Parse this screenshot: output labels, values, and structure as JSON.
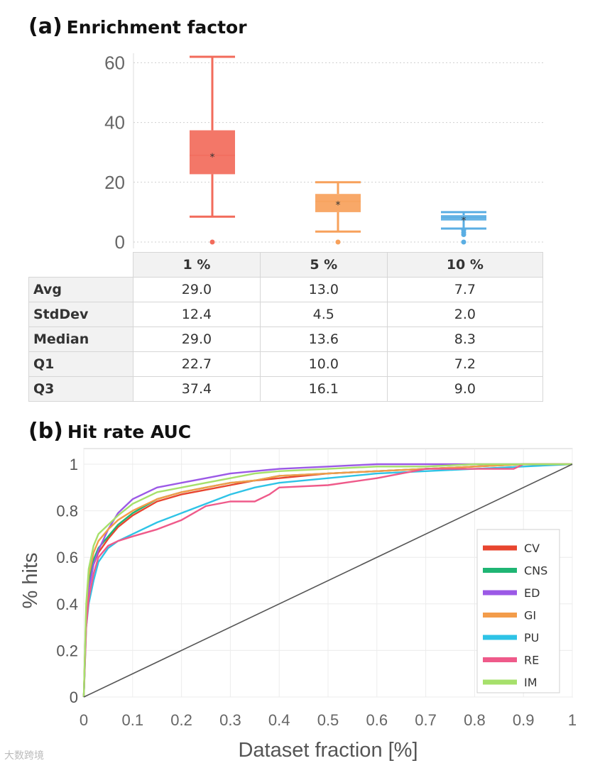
{
  "panel_a": {
    "letter": "(a)",
    "title": "Enrichment factor"
  },
  "panel_b": {
    "letter": "(b)",
    "title": "Hit rate AUC"
  },
  "stats_table": {
    "columns": [
      "1 %",
      "5 %",
      "10 %"
    ],
    "rows": [
      {
        "label": "Avg",
        "values": [
          "29.0",
          "13.0",
          "7.7"
        ]
      },
      {
        "label": "StdDev",
        "values": [
          "12.4",
          "4.5",
          "2.0"
        ]
      },
      {
        "label": "Median",
        "values": [
          "29.0",
          "13.6",
          "8.3"
        ]
      },
      {
        "label": "Q1",
        "values": [
          "22.7",
          "10.0",
          "7.2"
        ]
      },
      {
        "label": "Q3",
        "values": [
          "37.4",
          "16.1",
          "9.0"
        ]
      }
    ]
  },
  "watermark": "大数跨境",
  "chart_data": [
    {
      "type": "box",
      "title": "Enrichment factor",
      "categories": [
        "1 %",
        "5 %",
        "10 %"
      ],
      "ylim": [
        0,
        62
      ],
      "yticks": [
        "0",
        "20",
        "40",
        "60"
      ],
      "grid": true,
      "boxes": [
        {
          "name": "1 %",
          "min": 8.5,
          "q1": 22.7,
          "median": 29.0,
          "q3": 37.4,
          "max": 62,
          "mean": 29.0,
          "outliers": [
            0
          ],
          "color": "#f26b5b"
        },
        {
          "name": "5 %",
          "min": 3.5,
          "q1": 10.0,
          "median": 13.6,
          "q3": 16.1,
          "max": 20,
          "mean": 13.0,
          "outliers": [
            0
          ],
          "color": "#f7a15b"
        },
        {
          "name": "10 %",
          "min": 4.5,
          "q1": 7.2,
          "median": 8.3,
          "q3": 9.0,
          "max": 10,
          "mean": 7.7,
          "outliers": [
            4,
            3.2,
            2.5,
            0
          ],
          "color": "#5aaee3"
        }
      ]
    },
    {
      "type": "line",
      "title": "Hit rate AUC",
      "xlabel": "Dataset fraction [%]",
      "ylabel": "% hits",
      "xlim": [
        0,
        1
      ],
      "ylim": [
        0,
        1
      ],
      "xticks": [
        "0",
        "0.1",
        "0.2",
        "0.3",
        "0.4",
        "0.5",
        "0.6",
        "0.7",
        "0.8",
        "0.9",
        "1"
      ],
      "yticks": [
        "0",
        "0.2",
        "0.4",
        "0.6",
        "0.8",
        "1"
      ],
      "legend_position": "bottom-right",
      "series": [
        {
          "name": "CV",
          "color": "#e8452f",
          "x": [
            0,
            0.005,
            0.01,
            0.02,
            0.03,
            0.05,
            0.07,
            0.1,
            0.15,
            0.2,
            0.25,
            0.3,
            0.35,
            0.4,
            0.5,
            0.6,
            0.7,
            0.8,
            0.9,
            1.0
          ],
          "y": [
            0,
            0.35,
            0.48,
            0.57,
            0.62,
            0.68,
            0.73,
            0.78,
            0.84,
            0.87,
            0.89,
            0.91,
            0.93,
            0.94,
            0.96,
            0.97,
            0.98,
            0.99,
            1.0,
            1.0
          ]
        },
        {
          "name": "CNS",
          "color": "#1fb574",
          "x": [
            0,
            0.005,
            0.01,
            0.02,
            0.03,
            0.05,
            0.07,
            0.1,
            0.15,
            0.2,
            0.25,
            0.3,
            0.35,
            0.4,
            0.5,
            0.6,
            0.7,
            0.8,
            0.9,
            1.0
          ],
          "y": [
            0,
            0.36,
            0.5,
            0.59,
            0.64,
            0.69,
            0.74,
            0.79,
            0.85,
            0.88,
            0.9,
            0.92,
            0.93,
            0.95,
            0.96,
            0.97,
            0.98,
            0.99,
            1.0,
            1.0
          ]
        },
        {
          "name": "ED",
          "color": "#9b59e6",
          "x": [
            0,
            0.005,
            0.01,
            0.02,
            0.03,
            0.05,
            0.07,
            0.1,
            0.15,
            0.2,
            0.25,
            0.3,
            0.35,
            0.4,
            0.5,
            0.6,
            0.7,
            0.8,
            0.9,
            1.0
          ],
          "y": [
            0,
            0.33,
            0.46,
            0.57,
            0.63,
            0.72,
            0.79,
            0.85,
            0.9,
            0.92,
            0.94,
            0.96,
            0.97,
            0.98,
            0.99,
            1.0,
            1.0,
            1.0,
            1.0,
            1.0
          ]
        },
        {
          "name": "GI",
          "color": "#f39c4a",
          "x": [
            0,
            0.005,
            0.01,
            0.02,
            0.03,
            0.05,
            0.07,
            0.1,
            0.15,
            0.2,
            0.25,
            0.3,
            0.35,
            0.4,
            0.5,
            0.6,
            0.7,
            0.8,
            0.9,
            1.0
          ],
          "y": [
            0,
            0.38,
            0.52,
            0.62,
            0.67,
            0.72,
            0.76,
            0.8,
            0.85,
            0.88,
            0.9,
            0.92,
            0.93,
            0.95,
            0.96,
            0.97,
            0.98,
            0.99,
            1.0,
            1.0
          ]
        },
        {
          "name": "PU",
          "color": "#2ec3e6",
          "x": [
            0,
            0.005,
            0.01,
            0.02,
            0.03,
            0.05,
            0.07,
            0.1,
            0.15,
            0.2,
            0.25,
            0.3,
            0.35,
            0.4,
            0.5,
            0.6,
            0.7,
            0.8,
            0.9,
            1.0
          ],
          "y": [
            0,
            0.3,
            0.4,
            0.5,
            0.58,
            0.64,
            0.67,
            0.7,
            0.75,
            0.79,
            0.83,
            0.87,
            0.9,
            0.92,
            0.94,
            0.96,
            0.97,
            0.98,
            0.99,
            1.0
          ]
        },
        {
          "name": "RE",
          "color": "#ef5a8a",
          "x": [
            0,
            0.005,
            0.01,
            0.02,
            0.03,
            0.05,
            0.07,
            0.1,
            0.15,
            0.2,
            0.25,
            0.3,
            0.35,
            0.38,
            0.4,
            0.5,
            0.6,
            0.7,
            0.8,
            0.88,
            0.9,
            1.0
          ],
          "y": [
            0,
            0.3,
            0.42,
            0.53,
            0.6,
            0.65,
            0.67,
            0.69,
            0.72,
            0.76,
            0.82,
            0.84,
            0.84,
            0.87,
            0.9,
            0.91,
            0.94,
            0.98,
            0.98,
            0.98,
            1.0,
            1.0
          ]
        },
        {
          "name": "IM",
          "color": "#a6e06b",
          "x": [
            0,
            0.005,
            0.01,
            0.02,
            0.03,
            0.05,
            0.07,
            0.1,
            0.15,
            0.2,
            0.25,
            0.3,
            0.35,
            0.4,
            0.5,
            0.6,
            0.7,
            0.8,
            0.9,
            1.0
          ],
          "y": [
            0,
            0.4,
            0.55,
            0.65,
            0.7,
            0.74,
            0.78,
            0.83,
            0.88,
            0.9,
            0.92,
            0.94,
            0.96,
            0.97,
            0.98,
            0.99,
            0.99,
            1.0,
            1.0,
            1.0
          ]
        },
        {
          "name": "random",
          "color": "#555555",
          "x": [
            0,
            1
          ],
          "y": [
            0,
            1
          ],
          "in_legend": false
        }
      ]
    }
  ]
}
